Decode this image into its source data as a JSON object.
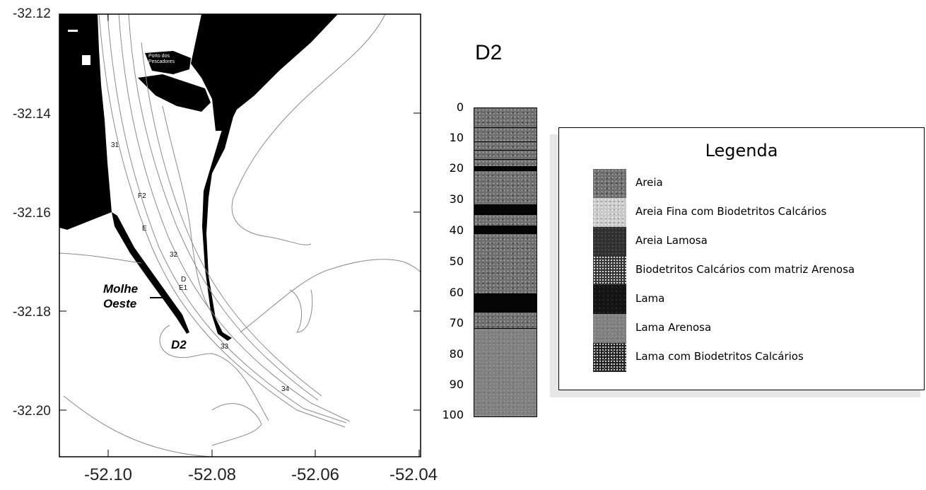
{
  "map": {
    "y_ticks": [
      "-32.12",
      "-32.14",
      "-32.16",
      "-32.18",
      "-32.20"
    ],
    "x_ticks": [
      "-52.10",
      "-52.08",
      "-52.06",
      "-52.04"
    ],
    "labels": {
      "l31": "31",
      "lf2": "F2",
      "le": "E",
      "l32": "32",
      "ld": "D",
      "le1": "E1",
      "l33": "33",
      "l34": "34"
    },
    "molhe_line1": "Molhe",
    "molhe_line2": "Oeste",
    "station": "D2",
    "island_line1": "Porto dos",
    "island_line2": "Pescadores"
  },
  "core": {
    "title": "D2",
    "depth_labels": [
      "0",
      "10",
      "20",
      "30",
      "40",
      "50",
      "60",
      "70",
      "80",
      "90",
      "100"
    ]
  },
  "legend": {
    "title": "Legenda",
    "items": [
      {
        "label": "Areia",
        "texture": "areia"
      },
      {
        "label": "Areia Fina com Biodetritos Calcários",
        "texture": "areiafina"
      },
      {
        "label": "Areia Lamosa",
        "texture": "areialamosa"
      },
      {
        "label": "Biodetritos Calcários com matriz Arenosa",
        "texture": "bio"
      },
      {
        "label": "Lama",
        "texture": "lama"
      },
      {
        "label": "Lama Arenosa",
        "texture": "lamaarenosa"
      },
      {
        "label": "Lama com Biodetritos Calcários",
        "texture": "lamabio"
      }
    ]
  },
  "colors": {
    "land": "#000000",
    "water": "#ffffff",
    "contour": "#8a8a8a"
  }
}
